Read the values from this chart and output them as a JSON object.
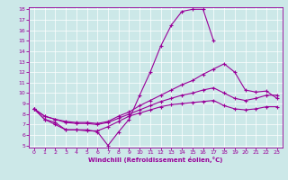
{
  "line1_x": [
    0,
    1,
    2,
    3,
    4,
    5,
    6,
    7,
    8,
    9,
    10,
    11,
    12,
    13,
    14,
    15,
    16,
    17
  ],
  "line1_y": [
    8.5,
    7.5,
    7.2,
    6.5,
    6.5,
    6.5,
    6.3,
    5.0,
    6.3,
    7.5,
    9.8,
    12.0,
    14.5,
    16.5,
    17.8,
    18.0,
    18.0,
    15.0
  ],
  "line2_x": [
    0,
    1,
    2,
    3,
    4,
    5,
    6,
    7,
    8,
    9,
    10,
    11,
    12,
    13,
    14,
    15,
    16,
    17,
    18,
    19,
    20,
    21,
    22,
    23
  ],
  "line2_y": [
    8.5,
    7.8,
    7.5,
    7.3,
    7.2,
    7.2,
    7.1,
    7.3,
    7.8,
    8.2,
    8.8,
    9.3,
    9.8,
    10.3,
    10.8,
    11.2,
    11.8,
    12.3,
    12.8,
    12.0,
    10.3,
    10.1,
    10.2,
    9.5
  ],
  "line3_x": [
    0,
    1,
    2,
    3,
    4,
    5,
    6,
    7,
    8,
    9,
    10,
    11,
    12,
    13,
    14,
    15,
    16,
    17,
    18,
    19,
    20,
    21,
    22,
    23
  ],
  "line3_y": [
    8.5,
    7.8,
    7.5,
    7.2,
    7.1,
    7.1,
    7.0,
    7.2,
    7.6,
    8.0,
    8.4,
    8.8,
    9.2,
    9.5,
    9.8,
    10.0,
    10.3,
    10.5,
    10.0,
    9.5,
    9.3,
    9.5,
    9.8,
    9.8
  ],
  "line4_x": [
    0,
    1,
    2,
    3,
    4,
    5,
    6,
    7,
    8,
    9,
    10,
    11,
    12,
    13,
    14,
    15,
    16,
    17,
    18,
    19,
    20,
    21,
    22,
    23
  ],
  "line4_y": [
    8.5,
    7.5,
    7.0,
    6.5,
    6.5,
    6.4,
    6.4,
    6.8,
    7.3,
    7.8,
    8.1,
    8.4,
    8.7,
    8.9,
    9.0,
    9.1,
    9.2,
    9.3,
    8.8,
    8.5,
    8.4,
    8.5,
    8.7,
    8.7
  ],
  "bg_color": "#cce8e8",
  "line_color": "#990099",
  "grid_color": "#ffffff",
  "xlabel": "Windchill (Refroidissement éolien,°C)",
  "ylim": [
    5,
    18
  ],
  "xlim": [
    -0.5,
    23.5
  ],
  "yticks": [
    5,
    6,
    7,
    8,
    9,
    10,
    11,
    12,
    13,
    14,
    15,
    16,
    17,
    18
  ],
  "xticks": [
    0,
    1,
    2,
    3,
    4,
    5,
    6,
    7,
    8,
    9,
    10,
    11,
    12,
    13,
    14,
    15,
    16,
    17,
    18,
    19,
    20,
    21,
    22,
    23
  ]
}
